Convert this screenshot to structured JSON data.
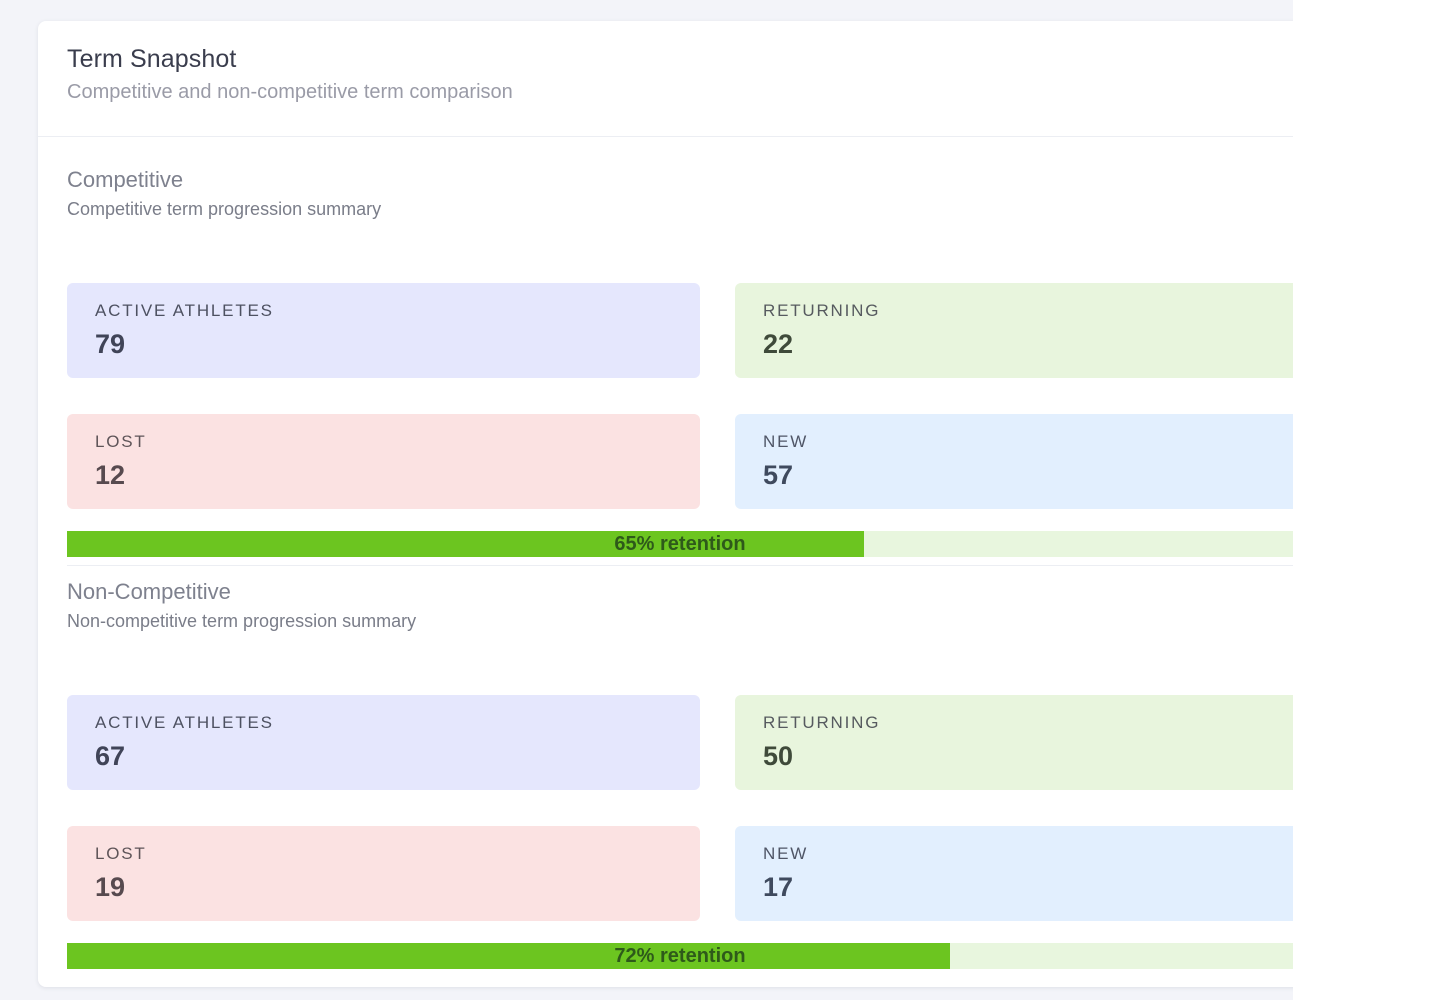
{
  "card": {
    "title": "Term Snapshot",
    "subtitle": "Competitive and non-competitive term comparison"
  },
  "sections": [
    {
      "title": "Competitive",
      "description": "Competitive term progression summary",
      "stats": {
        "active_label": "ACTIVE ATHLETES",
        "active_value": "79",
        "returning_label": "RETURNING",
        "returning_value": "22",
        "lost_label": "LOST",
        "lost_value": "12",
        "new_label": "NEW",
        "new_value": "57"
      },
      "retention_percent": 65,
      "retention_label": "65% retention"
    },
    {
      "title": "Non-Competitive",
      "description": "Non-competitive term progression summary",
      "stats": {
        "active_label": "ACTIVE ATHLETES",
        "active_value": "67",
        "returning_label": "RETURNING",
        "returning_value": "50",
        "lost_label": "LOST",
        "lost_value": "19",
        "new_label": "NEW",
        "new_value": "17"
      },
      "retention_percent": 72,
      "retention_label": "72% retention"
    }
  ],
  "colors": {
    "active_bg": "#e5e7fd",
    "returning_bg": "#e8f5dd",
    "lost_bg": "#fbe2e2",
    "new_bg": "#e2effe",
    "progress_fill": "#6cc520",
    "progress_track": "#e8f6de"
  }
}
